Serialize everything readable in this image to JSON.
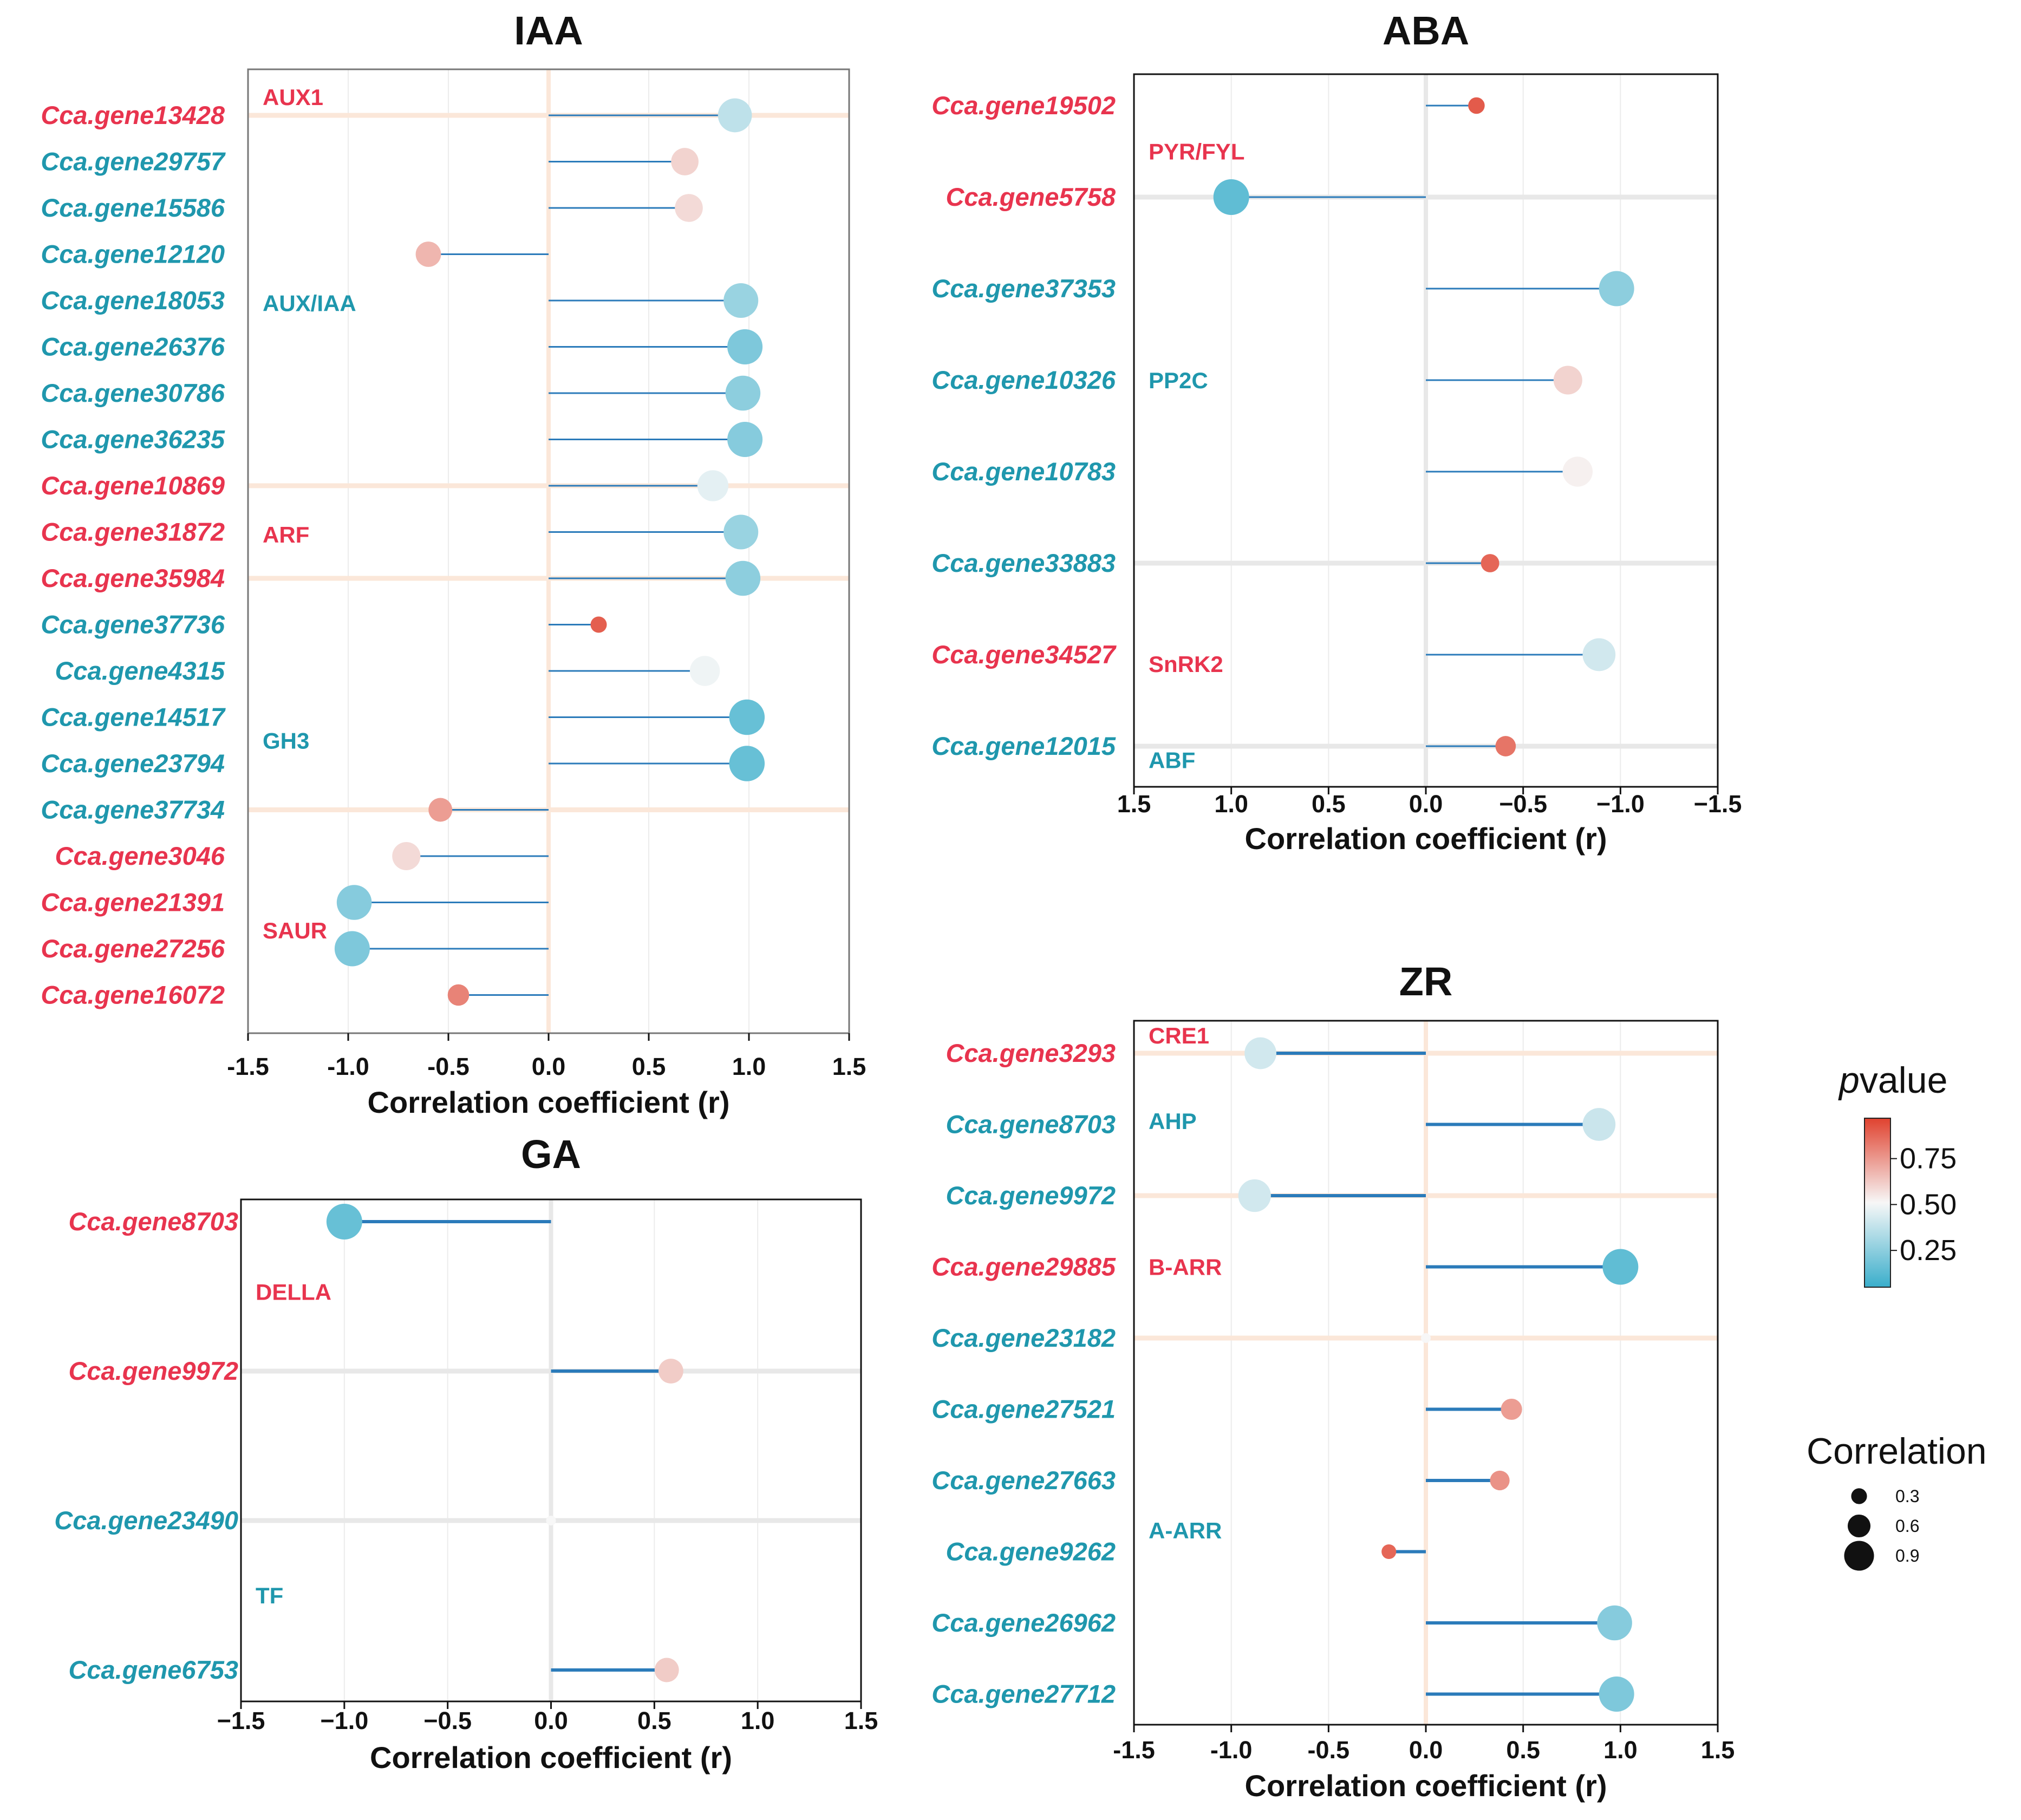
{
  "chart_data": [
    {
      "id": "iaa",
      "type": "lollipop",
      "title": "IAA",
      "xlabel": "Correlation coefficient (r)",
      "xlim": [
        -1.5,
        1.5
      ],
      "x_direction": "normal",
      "xticks": [
        -1.5,
        -1.0,
        -0.5,
        0.0,
        0.5,
        1.0,
        1.5
      ],
      "xtick_labels": [
        "-1.5",
        "-1.0",
        "-0.5",
        "0.0",
        "0.5",
        "1.0",
        "1.5"
      ],
      "grid": true,
      "zero_line_color": "#fbe7d9",
      "stem_style": "thin",
      "genes": [
        {
          "gene": "Cca.gene13428",
          "r": 0.93,
          "p": 0.35,
          "color": "red",
          "highlight": true
        },
        {
          "gene": "Cca.gene29757",
          "r": 0.68,
          "p": 0.6,
          "color": "teal",
          "highlight": false
        },
        {
          "gene": "Cca.gene15586",
          "r": 0.7,
          "p": 0.58,
          "color": "teal",
          "highlight": false
        },
        {
          "gene": "Cca.gene12120",
          "r": -0.6,
          "p": 0.68,
          "color": "teal",
          "highlight": false
        },
        {
          "gene": "Cca.gene18053",
          "r": 0.96,
          "p": 0.25,
          "color": "teal",
          "highlight": false
        },
        {
          "gene": "Cca.gene26376",
          "r": 0.98,
          "p": 0.18,
          "color": "teal",
          "highlight": false
        },
        {
          "gene": "Cca.gene30786",
          "r": 0.97,
          "p": 0.22,
          "color": "teal",
          "highlight": false
        },
        {
          "gene": "Cca.gene36235",
          "r": 0.98,
          "p": 0.2,
          "color": "teal",
          "highlight": false
        },
        {
          "gene": "Cca.gene10869",
          "r": 0.82,
          "p": 0.45,
          "color": "red",
          "highlight": true
        },
        {
          "gene": "Cca.gene31872",
          "r": 0.96,
          "p": 0.25,
          "color": "red",
          "highlight": false
        },
        {
          "gene": "Cca.gene35984",
          "r": 0.97,
          "p": 0.22,
          "color": "red",
          "highlight": true
        },
        {
          "gene": "Cca.gene37736",
          "r": 0.25,
          "p": 0.92,
          "color": "teal",
          "highlight": false
        },
        {
          "gene": "Cca.gene4315",
          "r": 0.78,
          "p": 0.48,
          "color": "teal",
          "highlight": false
        },
        {
          "gene": "Cca.gene14517",
          "r": 0.99,
          "p": 0.12,
          "color": "teal",
          "highlight": false
        },
        {
          "gene": "Cca.gene23794",
          "r": 0.99,
          "p": 0.12,
          "color": "teal",
          "highlight": false
        },
        {
          "gene": "Cca.gene37734",
          "r": -0.54,
          "p": 0.75,
          "color": "teal",
          "highlight": true
        },
        {
          "gene": "Cca.gene3046",
          "r": -0.71,
          "p": 0.58,
          "color": "red",
          "highlight": false
        },
        {
          "gene": "Cca.gene21391",
          "r": -0.97,
          "p": 0.2,
          "color": "red",
          "highlight": false
        },
        {
          "gene": "Cca.gene27256",
          "r": -0.98,
          "p": 0.18,
          "color": "red",
          "highlight": false
        },
        {
          "gene": "Cca.gene16072",
          "r": -0.45,
          "p": 0.82,
          "color": "red",
          "highlight": false
        }
      ],
      "groups": [
        {
          "label": "AUX1",
          "row": -0.4,
          "color": "red"
        },
        {
          "label": "AUX/IAA",
          "row": 4.05,
          "color": "teal"
        },
        {
          "label": "ARF",
          "row": 9.05,
          "color": "red"
        },
        {
          "label": "GH3",
          "row": 13.5,
          "color": "teal"
        },
        {
          "label": "SAUR",
          "row": 17.6,
          "color": "red"
        }
      ]
    },
    {
      "id": "aba",
      "type": "lollipop",
      "title": "ABA",
      "xlabel": "Correlation coefficient (r)",
      "xlim": [
        1.5,
        -1.5
      ],
      "x_direction": "reversed",
      "xticks": [
        1.5,
        1.0,
        0.5,
        0.0,
        -0.5,
        -1.0,
        -1.5
      ],
      "xtick_labels": [
        "1.5",
        "1.0",
        "0.5",
        "0.0",
        "−0.5",
        "−1.0",
        "−1.5"
      ],
      "grid": true,
      "zero_line_color": "#e8e8e8",
      "stem_style": "thin",
      "genes": [
        {
          "gene": "Cca.gene19502",
          "r": -0.26,
          "p": 0.93,
          "color": "red",
          "highlight": false
        },
        {
          "gene": "Cca.gene5758",
          "r": 1.0,
          "p": 0.1,
          "color": "red",
          "highlight": true
        },
        {
          "gene": "Cca.gene37353",
          "r": -0.98,
          "p": 0.22,
          "color": "teal",
          "highlight": false
        },
        {
          "gene": "Cca.gene10326",
          "r": -0.73,
          "p": 0.6,
          "color": "teal",
          "highlight": false
        },
        {
          "gene": "Cca.gene10783",
          "r": -0.78,
          "p": 0.52,
          "color": "teal",
          "highlight": false
        },
        {
          "gene": "Cca.gene33883",
          "r": -0.33,
          "p": 0.9,
          "color": "teal",
          "highlight": true
        },
        {
          "gene": "Cca.gene34527",
          "r": -0.89,
          "p": 0.4,
          "color": "red",
          "highlight": false
        },
        {
          "gene": "Cca.gene12015",
          "r": -0.41,
          "p": 0.86,
          "color": "teal",
          "highlight": true
        }
      ],
      "groups": [
        {
          "label": "PYR/FYL",
          "row": 0.5,
          "color": "red"
        },
        {
          "label": "PP2C",
          "row": 3.0,
          "color": "teal"
        },
        {
          "label": "SnRK2",
          "row": 6.1,
          "color": "red"
        },
        {
          "label": "ABF",
          "row": 7.15,
          "color": "teal"
        }
      ]
    },
    {
      "id": "ga",
      "type": "lollipop",
      "title": "GA",
      "xlabel": "Correlation coefficient (r)",
      "xlim": [
        -1.5,
        1.5
      ],
      "x_direction": "normal",
      "xticks": [
        -1.5,
        -1.0,
        -0.5,
        0.0,
        0.5,
        1.0,
        1.5
      ],
      "xtick_labels": [
        "−1.5",
        "−1.0",
        "−0.5",
        "0.0",
        "0.5",
        "1.0",
        "1.5"
      ],
      "grid": true,
      "zero_line_color": "#e8e8e8",
      "stem_style": "thick",
      "genes": [
        {
          "gene": "Cca.gene8703",
          "r": -1.0,
          "p": 0.12,
          "color": "red",
          "highlight": false
        },
        {
          "gene": "Cca.gene9972",
          "r": 0.58,
          "p": 0.62,
          "color": "red",
          "highlight": true
        },
        {
          "gene": "Cca.gene23490",
          "r": 0.0,
          "p": 0.5,
          "color": "teal",
          "highlight": true
        },
        {
          "gene": "Cca.gene6753",
          "r": 0.56,
          "p": 0.62,
          "color": "teal",
          "highlight": false
        }
      ],
      "groups": [
        {
          "label": "DELLA",
          "row": 0.47,
          "color": "red"
        },
        {
          "label": "TF",
          "row": 2.5,
          "color": "teal"
        }
      ]
    },
    {
      "id": "zr",
      "type": "lollipop",
      "title": "ZR",
      "xlabel": "Correlation coefficient (r)",
      "xlim": [
        -1.5,
        1.5
      ],
      "x_direction": "normal",
      "xticks": [
        -1.5,
        -1.0,
        -0.5,
        0.0,
        0.5,
        1.0,
        1.5
      ],
      "xtick_labels": [
        "-1.5",
        "-1.0",
        "-0.5",
        "0.0",
        "0.5",
        "1.0",
        "1.5"
      ],
      "grid": true,
      "zero_line_color": "#fbe7d9",
      "stem_style": "thick",
      "genes": [
        {
          "gene": "Cca.gene3293",
          "r": -0.85,
          "p": 0.4,
          "color": "red",
          "highlight": true
        },
        {
          "gene": "Cca.gene8703",
          "r": 0.89,
          "p": 0.38,
          "color": "teal",
          "highlight": false
        },
        {
          "gene": "Cca.gene9972",
          "r": -0.88,
          "p": 0.4,
          "color": "teal",
          "highlight": true
        },
        {
          "gene": "Cca.gene29885",
          "r": 1.0,
          "p": 0.1,
          "color": "red",
          "highlight": false
        },
        {
          "gene": "Cca.gene23182",
          "r": 0.0,
          "p": 0.5,
          "color": "teal",
          "highlight": true
        },
        {
          "gene": "Cca.gene27521",
          "r": 0.44,
          "p": 0.75,
          "color": "teal",
          "highlight": false
        },
        {
          "gene": "Cca.gene27663",
          "r": 0.38,
          "p": 0.78,
          "color": "teal",
          "highlight": false
        },
        {
          "gene": "Cca.gene9262",
          "r": -0.19,
          "p": 0.9,
          "color": "teal",
          "highlight": false
        },
        {
          "gene": "Cca.gene26962",
          "r": 0.97,
          "p": 0.2,
          "color": "teal",
          "highlight": false
        },
        {
          "gene": "Cca.gene27712",
          "r": 0.98,
          "p": 0.18,
          "color": "teal",
          "highlight": false
        }
      ],
      "groups": [
        {
          "label": "CRE1",
          "row": -0.25,
          "color": "red"
        },
        {
          "label": "AHP",
          "row": 0.95,
          "color": "teal"
        },
        {
          "label": "B-ARR",
          "row": 3.0,
          "color": "red"
        },
        {
          "label": "A-ARR",
          "row": 6.7,
          "color": "teal"
        }
      ]
    }
  ],
  "legend": {
    "pvalue_title_italic": "p",
    "pvalue_title_rest": "value",
    "pvalue_ticks": [
      "0.75",
      "0.50",
      "0.25"
    ],
    "pvalue_tick_values": [
      0.75,
      0.5,
      0.25
    ],
    "pvalue_range": [
      0.05,
      0.97
    ],
    "correlation_title": "Correlation",
    "correlation_sizes": [
      0.3,
      0.6,
      0.9
    ],
    "correlation_labels": [
      "0.3",
      "0.6",
      "0.9"
    ]
  },
  "colors": {
    "red_label": "#e8344e",
    "teal_label": "#1f97ad",
    "stem": "#2b7bba",
    "cmap_low": "#3aaecb",
    "cmap_mid": "#f7f7f7",
    "cmap_high": "#e0422f"
  }
}
